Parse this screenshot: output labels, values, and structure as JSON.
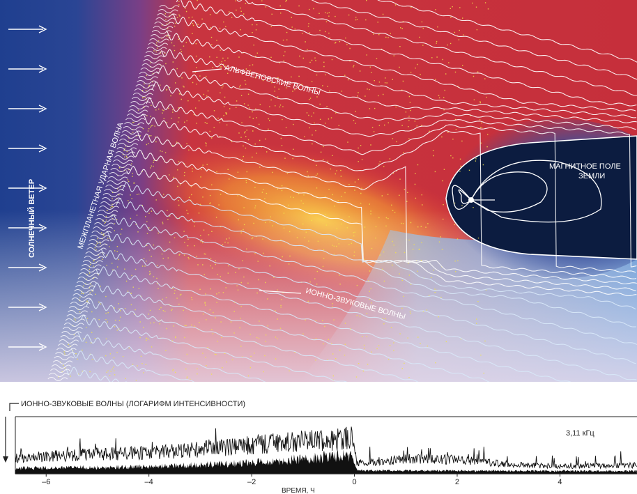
{
  "diagram": {
    "labels": {
      "solar_wind": "СОЛНЕЧНЫЙ ВЕТЕР",
      "shock": "МЕЖПЛАНЕТНАЯ УДАРНАЯ ВОЛНА",
      "alfven": "АЛЬФВЕНОВСКИЕ ВОЛНЫ",
      "ion_acoustic": "ИОННО-ЗВУКОВЫЕ ВОЛНЫ",
      "field_line1": "МАГНИТНОЕ ПОЛЕ",
      "field_line2": "ЗЕМЛИ"
    },
    "colors": {
      "solar_wind_bg": "#1f3f8f",
      "plasma_red": "#d9303a",
      "plasma_core": "#f7b53a",
      "dots": "#f2e24a",
      "magnetosphere": "#0c1c40",
      "tail_blue": "#6fa6dc"
    }
  },
  "chart": {
    "title": "ИОННО-ЗВУКОВЫЕ ВОЛНЫ (ЛОГАРИФМ ИНТЕНСИВНОСТИ)",
    "annotation": "3,11 кГц",
    "xlabel": "ВРЕМЯ, Ч"
  },
  "chart_data": {
    "type": "line",
    "title": "ИОННО-ЗВУКОВЫЕ ВОЛНЫ (ЛОГАРИФМ ИНТЕНСИВНОСТИ)",
    "xlabel": "ВРЕМЯ, Ч",
    "ylabel": "",
    "xlim": [
      -6.6,
      5.5
    ],
    "ticks": [
      {
        "value": -6,
        "label": "–6"
      },
      {
        "value": -4,
        "label": "–4"
      },
      {
        "value": -2,
        "label": "–2"
      },
      {
        "value": 0,
        "label": "0"
      },
      {
        "value": 2,
        "label": "2"
      },
      {
        "value": 4,
        "label": "4"
      }
    ],
    "grid": false,
    "series": [
      {
        "name": "3,11 кГц",
        "envelope": [
          [
            -6.6,
            0.32
          ],
          [
            -5.5,
            0.4
          ],
          [
            -4.5,
            0.43
          ],
          [
            -3.5,
            0.48
          ],
          [
            -2.5,
            0.56
          ],
          [
            -1.5,
            0.66
          ],
          [
            -0.5,
            0.72
          ],
          [
            -0.05,
            0.76
          ],
          [
            0.05,
            0.22
          ],
          [
            1.0,
            0.32
          ],
          [
            2.0,
            0.3
          ],
          [
            3.0,
            0.2
          ],
          [
            4.0,
            0.16
          ],
          [
            5.5,
            0.18
          ]
        ],
        "floor": [
          [
            -6.6,
            0.1
          ],
          [
            -4.0,
            0.13
          ],
          [
            -2.0,
            0.2
          ],
          [
            -1.0,
            0.28
          ],
          [
            -0.05,
            0.34
          ],
          [
            0.05,
            0.06
          ],
          [
            5.5,
            0.05
          ]
        ]
      }
    ]
  }
}
